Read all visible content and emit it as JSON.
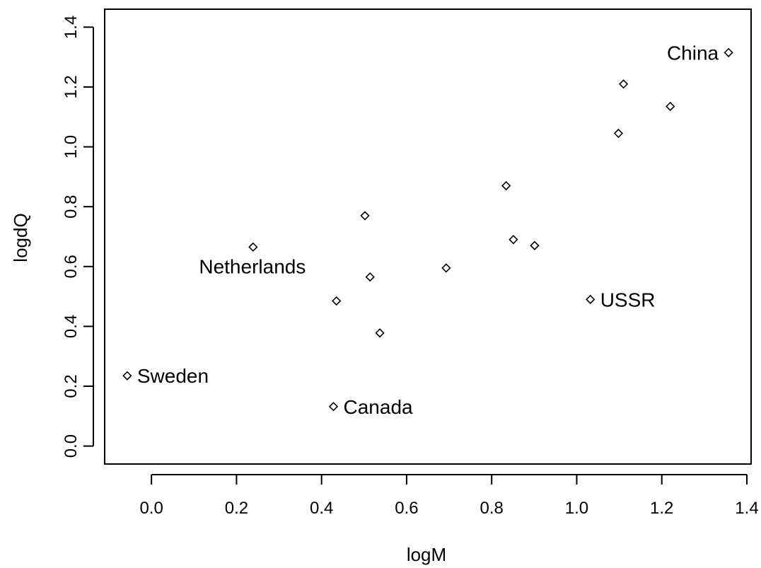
{
  "chart_data": {
    "type": "scatter",
    "title": "",
    "xlabel": "logM",
    "ylabel": "logdQ",
    "xlim": [
      -0.11,
      1.41
    ],
    "ylim": [
      -0.06,
      1.46
    ],
    "xticks": [
      0.0,
      0.2,
      0.4,
      0.6,
      0.8,
      1.0,
      1.2,
      1.4
    ],
    "yticks": [
      0.0,
      0.2,
      0.4,
      0.6,
      0.8,
      1.0,
      1.2,
      1.4
    ],
    "xtick_labels": [
      "0.0",
      "0.2",
      "0.4",
      "0.6",
      "0.8",
      "1.0",
      "1.2",
      "1.4"
    ],
    "ytick_labels": [
      "0.0",
      "0.2",
      "0.4",
      "0.6",
      "0.8",
      "1.0",
      "1.2",
      "1.4"
    ],
    "grid": false,
    "legend": "none",
    "marker": "open-diamond",
    "points": [
      {
        "x": 1.357,
        "y": 1.315,
        "label": "China",
        "label_side": "left"
      },
      {
        "x": 1.11,
        "y": 1.21,
        "label": ""
      },
      {
        "x": 1.22,
        "y": 1.135,
        "label": ""
      },
      {
        "x": 1.098,
        "y": 1.045,
        "label": ""
      },
      {
        "x": 0.834,
        "y": 0.87,
        "label": ""
      },
      {
        "x": 0.502,
        "y": 0.77,
        "label": ""
      },
      {
        "x": 0.851,
        "y": 0.69,
        "label": ""
      },
      {
        "x": 0.901,
        "y": 0.67,
        "label": ""
      },
      {
        "x": 0.239,
        "y": 0.665,
        "label": "Netherlands",
        "label_side": "below"
      },
      {
        "x": 0.693,
        "y": 0.595,
        "label": ""
      },
      {
        "x": 0.514,
        "y": 0.565,
        "label": ""
      },
      {
        "x": 1.032,
        "y": 0.49,
        "label": "USSR",
        "label_side": "right"
      },
      {
        "x": 0.435,
        "y": 0.485,
        "label": ""
      },
      {
        "x": 0.537,
        "y": 0.378,
        "label": ""
      },
      {
        "x": -0.057,
        "y": 0.235,
        "label": "Sweden",
        "label_side": "right"
      },
      {
        "x": 0.428,
        "y": 0.132,
        "label": "Canada",
        "label_side": "right"
      }
    ]
  }
}
